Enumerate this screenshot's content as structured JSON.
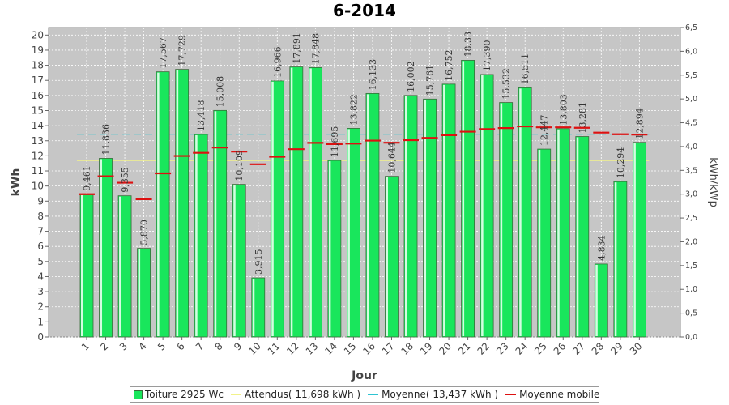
{
  "colors": {
    "plot_bg": "#c6c6c6",
    "bar_fill": "#19e65c",
    "bar_stroke": "#3a6b3a",
    "attendus_line": "#f2f28a",
    "moyenne_line": "#2ec4d2",
    "mobile_line": "#dd1111",
    "grid": "#ffffff"
  },
  "chart_data": {
    "type": "bar",
    "title": "6-2014",
    "xlabel": "Jour",
    "ylabel": "kWh",
    "ylabel_right": "kWh/kWp",
    "ylim": [
      0,
      20.5
    ],
    "ylim_right": [
      0,
      6.5
    ],
    "y_ticks": [
      "0",
      "1",
      "2",
      "3",
      "4",
      "5",
      "6",
      "7",
      "8",
      "9",
      "10",
      "11",
      "12",
      "13",
      "14",
      "15",
      "16",
      "17",
      "18",
      "19",
      "20"
    ],
    "y_ticks_right": [
      "0,0",
      "0,5",
      "1,0",
      "1,5",
      "2,0",
      "2,5",
      "3,0",
      "3,5",
      "4,0",
      "4,5",
      "5,0",
      "5,5",
      "6,0",
      "6,5"
    ],
    "categories": [
      "1",
      "2",
      "3",
      "4",
      "5",
      "6",
      "7",
      "8",
      "9",
      "10",
      "11",
      "12",
      "13",
      "14",
      "15",
      "16",
      "17",
      "18",
      "19",
      "20",
      "21",
      "22",
      "23",
      "24",
      "25",
      "26",
      "27",
      "28",
      "29",
      "30"
    ],
    "series": [
      {
        "name": "Toiture 2925 Wc",
        "values": [
          9.461,
          11.836,
          9.355,
          5.87,
          17.567,
          17.729,
          13.418,
          15.008,
          10.109,
          3.915,
          16.966,
          17.891,
          17.848,
          11.695,
          13.822,
          16.133,
          10.644,
          16.002,
          15.761,
          16.752,
          18.33,
          17.39,
          15.532,
          16.511,
          12.447,
          13.803,
          13.281,
          4.834,
          10.294,
          12.894
        ],
        "labels": [
          "9,461",
          "11,836",
          "9,355",
          "5,870",
          "17,567",
          "17,729",
          "13,418",
          "15,008",
          "10,109",
          "3,915",
          "16,966",
          "17,891",
          "17,848",
          "11,695",
          "13,822",
          "16,133",
          "10,644",
          "16,002",
          "15,761",
          "16,752",
          "18,33",
          "17,390",
          "15,532",
          "16,511",
          "12,447",
          "13,803",
          "13,281",
          "4,834",
          "10,294",
          "12,894"
        ]
      },
      {
        "name": "Attendus( 11,698 kWh )",
        "value": 11.698
      },
      {
        "name": "Moyenne( 13,437 kWh )",
        "value": 13.437
      },
      {
        "name": "Moyenne mobile",
        "values": [
          9.46,
          10.65,
          10.22,
          9.13,
          10.84,
          11.99,
          12.2,
          12.55,
          12.28,
          11.44,
          11.94,
          12.44,
          12.86,
          12.78,
          12.81,
          13.01,
          12.87,
          13.04,
          13.19,
          13.37,
          13.6,
          13.77,
          13.84,
          13.95,
          13.89,
          13.89,
          13.86,
          13.54,
          13.43,
          13.41
        ]
      }
    ],
    "legend_position": "bottom",
    "grid": true
  }
}
